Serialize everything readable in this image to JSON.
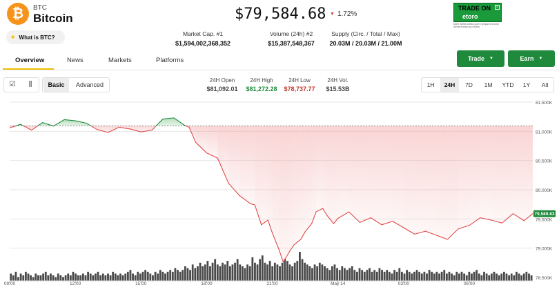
{
  "coin": {
    "symbol": "BTC",
    "name": "Bitcoin",
    "icon_glyph": "₿",
    "icon": "bitcoin-icon",
    "what_is_label": "What is BTC?"
  },
  "price": {
    "value": "$79,584.68",
    "change": "1.72%",
    "direction": "down"
  },
  "stats": [
    {
      "label": "Market Cap. #1",
      "value": "$1,594,002,368,352"
    },
    {
      "label": "Volume (24h) #2",
      "value": "$15,387,548,367"
    },
    {
      "label": "Supply (Circ. / Total / Max)",
      "value": "20.03M / 20.03M / 21.00M"
    }
  ],
  "ad": {
    "headline": "TRADE ON",
    "logo": "etoro",
    "close": "x",
    "disclaimer": "Don't invest unless you're prepared to lose all the money you invest."
  },
  "tabs": [
    "Overview",
    "News",
    "Markets",
    "Platforms"
  ],
  "actions": {
    "trade": "Trade",
    "earn": "Earn"
  },
  "toolbar": {
    "basic": "Basic",
    "advanced": "Advanced"
  },
  "ohlc": [
    {
      "label": "24H Open",
      "value": "$81,092.01",
      "color": "#111111"
    },
    {
      "label": "24H High",
      "value": "$81,272.28",
      "color": "#1f8a3b"
    },
    {
      "label": "24H Low",
      "value": "$78,737.77",
      "color": "#c0392b"
    },
    {
      "label": "24H Vol.",
      "value": "$15.53B",
      "color": "#111111"
    }
  ],
  "ranges": [
    "1H",
    "24H",
    "7D",
    "1M",
    "YTD",
    "1Y",
    "All"
  ],
  "active_range": "24H",
  "colors": {
    "up": "#1f8a3b",
    "down": "#e04848",
    "accent": "#f0c000"
  },
  "chart_data": {
    "type": "line",
    "title": "",
    "baseline": 81092.01,
    "current_price_label": "79,589.83",
    "y_ticks": [
      "81.500K",
      "81.000K",
      "80.500K",
      "80.000K",
      "79.500K",
      "79.000K",
      "78.500K"
    ],
    "y_range": [
      78500,
      81500
    ],
    "x_ticks": [
      "09:00",
      "12:00",
      "15:00",
      "18:00",
      "21:00",
      "May 14",
      "03:00",
      "06:00"
    ],
    "x_tick_hours": [
      0,
      3,
      6,
      9,
      12,
      15,
      18,
      21
    ],
    "x_range_hours": [
      0,
      23.9
    ],
    "series": [
      {
        "x": [
          0,
          0.5,
          1,
          1.5,
          2,
          2.5,
          3,
          3.5,
          4,
          4.5,
          5,
          5.5,
          6,
          6.5,
          7,
          7.5,
          8,
          8.2,
          8.5,
          9,
          9.5,
          10,
          10.5,
          11,
          11.2,
          11.5,
          11.8,
          12,
          12.3,
          12.5,
          12.8,
          13,
          13.3,
          13.5,
          13.8,
          14,
          14.3,
          14.5,
          14.8,
          15,
          15.5,
          16,
          16.5,
          17,
          17.5,
          18,
          18.5,
          19,
          19.5,
          20,
          20.5,
          21,
          21.5,
          22,
          22.5,
          23,
          23.5,
          23.9
        ],
        "y": [
          81060,
          81120,
          81020,
          81150,
          81090,
          81200,
          81180,
          81140,
          81030,
          80980,
          81070,
          81040,
          80990,
          81020,
          81210,
          81230,
          81100,
          81070,
          80810,
          80630,
          80540,
          80110,
          79900,
          79760,
          79740,
          79400,
          79480,
          79260,
          78980,
          78760,
          78950,
          79060,
          79150,
          79280,
          79420,
          79620,
          79680,
          79560,
          79420,
          79510,
          79620,
          79440,
          79520,
          79400,
          79460,
          79350,
          79240,
          79290,
          79220,
          79150,
          79330,
          79390,
          79520,
          79480,
          79430,
          79590,
          79470,
          79590
        ]
      }
    ],
    "volume": [
      4,
      3,
      5,
      2,
      4,
      3,
      5,
      4,
      3,
      2,
      4,
      3,
      3,
      4,
      5,
      3,
      4,
      3,
      2,
      4,
      3,
      2,
      3,
      4,
      3,
      5,
      4,
      3,
      3,
      4,
      3,
      5,
      4,
      3,
      4,
      5,
      3,
      4,
      3,
      4,
      3,
      5,
      4,
      3,
      4,
      3,
      4,
      5,
      6,
      4,
      3,
      5,
      4,
      5,
      6,
      5,
      4,
      3,
      5,
      4,
      6,
      5,
      4,
      5,
      6,
      5,
      7,
      6,
      5,
      6,
      8,
      7,
      6,
      9,
      7,
      8,
      10,
      8,
      9,
      11,
      8,
      10,
      12,
      9,
      8,
      10,
      9,
      11,
      8,
      9,
      10,
      12,
      9,
      8,
      7,
      9,
      8,
      13,
      10,
      9,
      12,
      14,
      10,
      9,
      11,
      8,
      10,
      9,
      8,
      10,
      12,
      11,
      9,
      8,
      10,
      11,
      16,
      12,
      10,
      9,
      8,
      7,
      9,
      8,
      10,
      9,
      8,
      7,
      6,
      8,
      9,
      7,
      6,
      8,
      7,
      6,
      7,
      8,
      6,
      5,
      7,
      6,
      5,
      6,
      7,
      5,
      6,
      5,
      7,
      6,
      5,
      6,
      5,
      4,
      6,
      5,
      7,
      5,
      4,
      6,
      5,
      4,
      5,
      6,
      5,
      4,
      5,
      4,
      6,
      5,
      4,
      5,
      4,
      5,
      6,
      4,
      5,
      4,
      3,
      5,
      4,
      5,
      4,
      3,
      5,
      4,
      5,
      6,
      4,
      3,
      5,
      4,
      3,
      4,
      5,
      4,
      3,
      4,
      5,
      4,
      3,
      4,
      3,
      5,
      4,
      3,
      4,
      5,
      4,
      3
    ]
  }
}
